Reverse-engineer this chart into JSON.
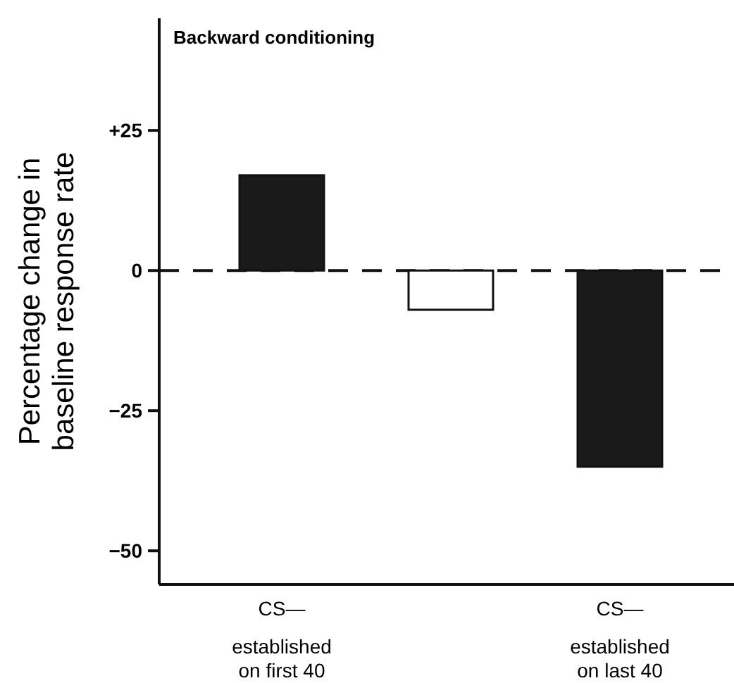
{
  "chart_data": {
    "type": "bar",
    "title": "Backward conditioning",
    "ylabel": "Percentage change in baseline response rate",
    "categories": [
      "CS—\nestablished\non first 40",
      null,
      "CS—\nestablished\non last 40"
    ],
    "values": [
      17,
      -7,
      -35
    ],
    "colors": [
      "#1a1a1a",
      "#ffffff",
      "#1a1a1a"
    ],
    "ylim": [
      -56,
      45
    ],
    "yticks": [
      {
        "value": 25,
        "label": "+25"
      },
      0,
      {
        "value": -25,
        "label": "−25"
      },
      {
        "value": -50,
        "label": "−50"
      }
    ],
    "ref_lines": [
      {
        "axis": "y",
        "value": 0,
        "line_style": "dashed"
      }
    ],
    "grid": false
  }
}
